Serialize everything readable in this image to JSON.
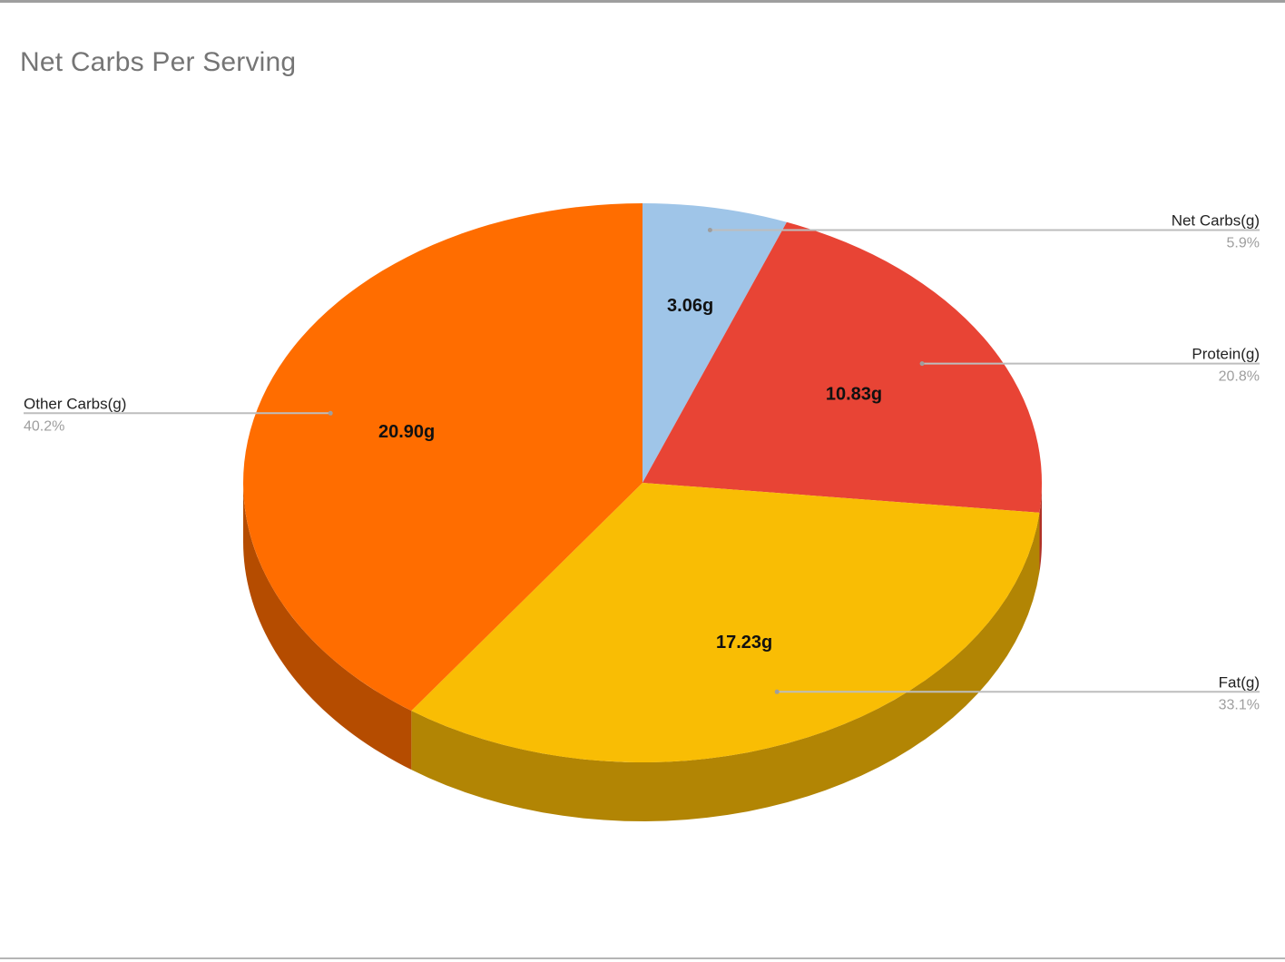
{
  "chart_data": {
    "type": "pie",
    "title": "Net Carbs Per Serving",
    "slices": [
      {
        "name": "Net Carbs(g)",
        "value": 3.06,
        "value_label": "3.06g",
        "percent_label": "5.9%",
        "color": "#9fc5e8",
        "side_color": "#7fa3c4"
      },
      {
        "name": "Protein(g)",
        "value": 10.83,
        "value_label": "10.83g",
        "percent_label": "20.8%",
        "color": "#e84435",
        "side_color": "#b03026"
      },
      {
        "name": "Fat(g)",
        "value": 17.23,
        "value_label": "17.23g",
        "percent_label": "33.1%",
        "color": "#f9bd04",
        "side_color": "#b28504"
      },
      {
        "name": "Other Carbs(g)",
        "value": 20.9,
        "value_label": "20.90g",
        "percent_label": "40.2%",
        "color": "#ff6d00",
        "side_color": "#b54c00"
      }
    ],
    "style": "3d"
  }
}
